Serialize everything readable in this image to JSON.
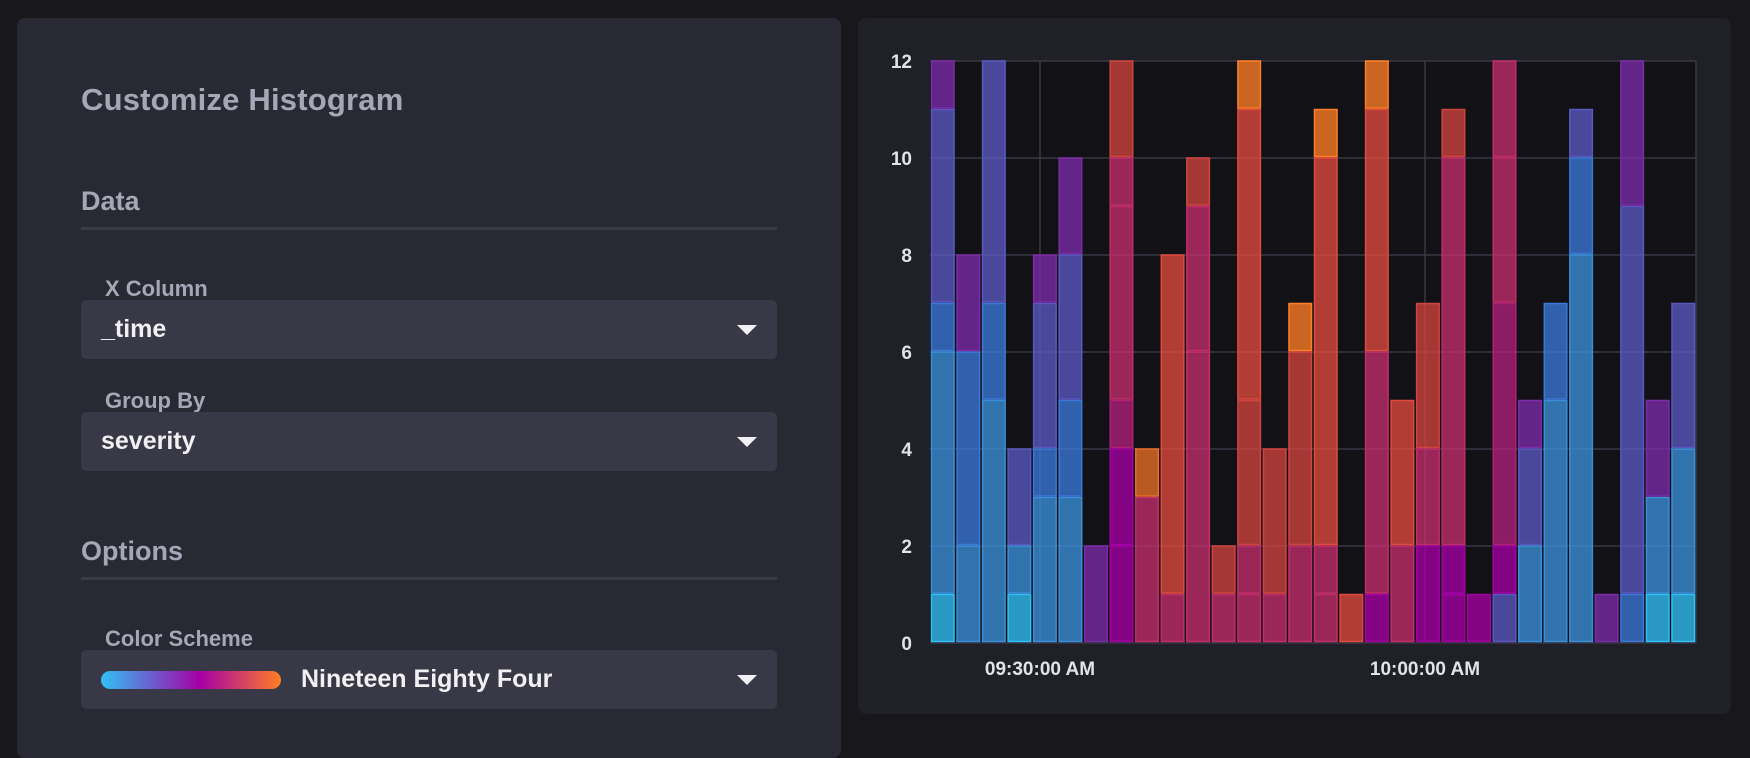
{
  "panel": {
    "title": "Customize Histogram",
    "data_heading": "Data",
    "x_column": {
      "label": "X Column",
      "value": "_time"
    },
    "group_by": {
      "label": "Group By",
      "value": "severity"
    },
    "options_heading": "Options",
    "color_scheme": {
      "label": "Color Scheme",
      "value": "Nineteen Eighty Four"
    }
  },
  "colors": {
    "scheme": [
      "#31c0f6",
      "#3b78d8",
      "#5a49b8",
      "#7b2ca8",
      "#a500a5",
      "#c12e6a",
      "#e04a3f",
      "#ff7e27"
    ]
  },
  "chart_data": {
    "type": "bar",
    "stacked": true,
    "ylim": [
      0,
      12
    ],
    "y_ticks": [
      "0",
      "2",
      "4",
      "6",
      "8",
      "10",
      "12"
    ],
    "x_tick_labels": [
      "09:30:00 AM",
      "10:00:00 AM"
    ],
    "grid": true,
    "bars": [
      [
        [
          0,
          1,
          "#31c0f6"
        ],
        [
          1,
          6,
          "#3b8fd8"
        ],
        [
          6,
          7,
          "#3b78d8"
        ],
        [
          7,
          11,
          "#5a58c0"
        ],
        [
          11,
          12,
          "#7b2ca8"
        ]
      ],
      [
        [
          0,
          2,
          "#3b8fd8"
        ],
        [
          2,
          6,
          "#3b78d8"
        ],
        [
          6,
          8,
          "#7b2ca8"
        ]
      ],
      [
        [
          0,
          5,
          "#3b8fd8"
        ],
        [
          5,
          7,
          "#3b78d8"
        ],
        [
          7,
          12,
          "#5a58c0"
        ]
      ],
      [
        [
          0,
          1,
          "#31c0f6"
        ],
        [
          1,
          2,
          "#3b8fd8"
        ],
        [
          2,
          4,
          "#5a58c0"
        ]
      ],
      [
        [
          0,
          3,
          "#3b8fd8"
        ],
        [
          3,
          4,
          "#3b78d8"
        ],
        [
          4,
          7,
          "#5a58c0"
        ],
        [
          7,
          8,
          "#7b2ca8"
        ]
      ],
      [
        [
          0,
          3,
          "#3b8fd8"
        ],
        [
          3,
          5,
          "#3b78d8"
        ],
        [
          5,
          8,
          "#5a58c0"
        ],
        [
          8,
          10,
          "#7b2ca8"
        ]
      ],
      [
        [
          0,
          2,
          "#7b2ca8"
        ]
      ],
      [
        [
          0,
          2,
          "#a500a5"
        ],
        [
          2,
          4,
          "#a500a5"
        ],
        [
          4,
          5,
          "#b0207a"
        ],
        [
          5,
          9,
          "#c12e6a"
        ],
        [
          9,
          10,
          "#c12e6a"
        ],
        [
          10,
          12,
          "#d0443f"
        ]
      ],
      [
        [
          0,
          3,
          "#c12e6a"
        ],
        [
          3,
          4,
          "#e86f27"
        ]
      ],
      [
        [
          0,
          1,
          "#c12e6a"
        ],
        [
          1,
          8,
          "#e04a3f"
        ]
      ],
      [
        [
          0,
          6,
          "#c12e6a"
        ],
        [
          6,
          9,
          "#c12e6a"
        ],
        [
          9,
          10,
          "#d0443f"
        ]
      ],
      [
        [
          0,
          1,
          "#c12e6a"
        ],
        [
          1,
          2,
          "#d0443f"
        ]
      ],
      [
        [
          0,
          1,
          "#c12e6a"
        ],
        [
          1,
          2,
          "#c12e6a"
        ],
        [
          2,
          5,
          "#d0443f"
        ],
        [
          5,
          11,
          "#e04a3f"
        ],
        [
          11,
          12,
          "#ff7e27"
        ]
      ],
      [
        [
          0,
          1,
          "#c12e6a"
        ],
        [
          1,
          4,
          "#d0443f"
        ]
      ],
      [
        [
          0,
          2,
          "#c12e6a"
        ],
        [
          2,
          6,
          "#d0443f"
        ],
        [
          6,
          7,
          "#ff7e27"
        ]
      ],
      [
        [
          0,
          1,
          "#c12e6a"
        ],
        [
          1,
          2,
          "#c12e6a"
        ],
        [
          2,
          10,
          "#e04a3f"
        ],
        [
          10,
          11,
          "#ff7e27"
        ]
      ],
      [
        [
          0,
          1,
          "#e04a3f"
        ]
      ],
      [
        [
          0,
          1,
          "#a500a5"
        ],
        [
          1,
          6,
          "#c12e6a"
        ],
        [
          6,
          11,
          "#e04a3f"
        ],
        [
          11,
          12,
          "#ff7e27"
        ]
      ],
      [
        [
          0,
          2,
          "#c12e6a"
        ],
        [
          2,
          5,
          "#e04a3f"
        ]
      ],
      [
        [
          0,
          2,
          "#a500a5"
        ],
        [
          2,
          4,
          "#c12e6a"
        ],
        [
          4,
          7,
          "#d0443f"
        ]
      ],
      [
        [
          0,
          1,
          "#a500a5"
        ],
        [
          1,
          2,
          "#a500a5"
        ],
        [
          2,
          10,
          "#c12e6a"
        ],
        [
          10,
          11,
          "#d0443f"
        ]
      ],
      [
        [
          0,
          1,
          "#a500a5"
        ]
      ],
      [
        [
          0,
          1,
          "#5a58c0"
        ],
        [
          1,
          2,
          "#a500a5"
        ],
        [
          2,
          7,
          "#b0207a"
        ],
        [
          7,
          10,
          "#c12e6a"
        ],
        [
          10,
          12,
          "#c12e6a"
        ]
      ],
      [
        [
          0,
          2,
          "#3b8fd8"
        ],
        [
          2,
          4,
          "#5a58c0"
        ],
        [
          4,
          5,
          "#7b2ca8"
        ]
      ],
      [
        [
          0,
          5,
          "#3b8fd8"
        ],
        [
          5,
          7,
          "#3b78d8"
        ]
      ],
      [
        [
          0,
          8,
          "#3b8fd8"
        ],
        [
          8,
          10,
          "#3b78d8"
        ],
        [
          10,
          11,
          "#5a58c0"
        ]
      ],
      [
        [
          0,
          1,
          "#7b2ca8"
        ]
      ],
      [
        [
          0,
          1,
          "#3b78d8"
        ],
        [
          1,
          9,
          "#5a58c0"
        ],
        [
          9,
          12,
          "#7b2ca8"
        ]
      ],
      [
        [
          0,
          1,
          "#31c0f6"
        ],
        [
          1,
          3,
          "#3b8fd8"
        ],
        [
          3,
          5,
          "#7b2ca8"
        ]
      ],
      [
        [
          0,
          1,
          "#31c0f6"
        ],
        [
          1,
          4,
          "#3b8fd8"
        ],
        [
          4,
          7,
          "#5a58c0"
        ]
      ]
    ]
  }
}
